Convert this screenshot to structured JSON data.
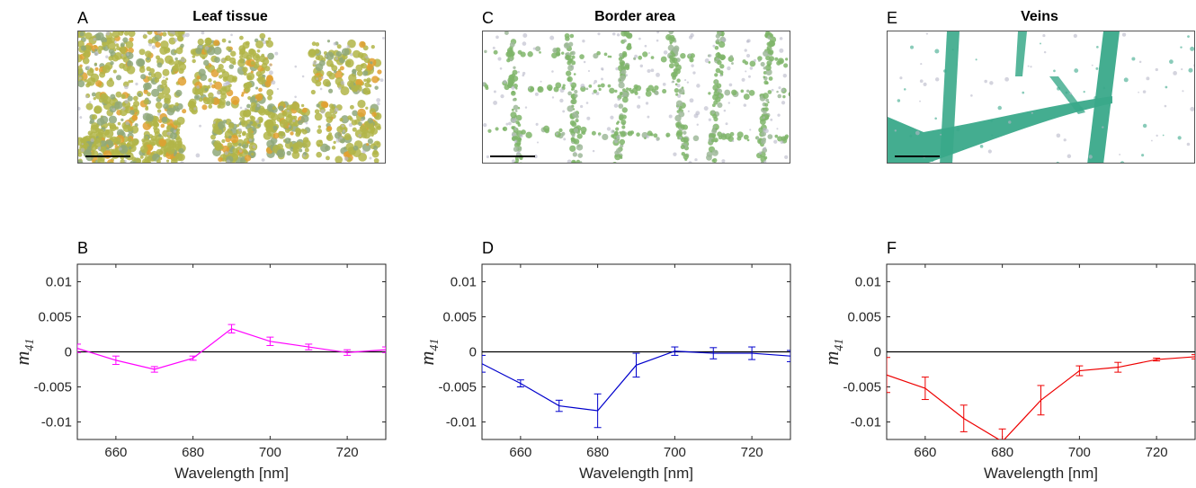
{
  "top_panels": [
    {
      "letter": "A",
      "title": "Leaf tissue",
      "tint": "#b1b548",
      "style": "tissue"
    },
    {
      "letter": "C",
      "title": "Border area",
      "tint": "#7fb56a",
      "style": "border"
    },
    {
      "letter": "E",
      "title": "Veins",
      "tint": "#3aa98a",
      "style": "veins"
    }
  ],
  "bottom_panels": [
    {
      "letter": "B"
    },
    {
      "letter": "D"
    },
    {
      "letter": "F"
    }
  ],
  "chart_data": [
    {
      "type": "line",
      "color": "#ff00ff",
      "x": [
        650,
        660,
        670,
        680,
        690,
        700,
        710,
        720,
        730
      ],
      "values": [
        0.0005,
        -0.0012,
        -0.0025,
        -0.0009,
        0.0033,
        0.0015,
        0.0007,
        -0.0001,
        0.0003
      ],
      "errors": [
        0.0006,
        0.0006,
        0.0004,
        0.0003,
        0.0006,
        0.0006,
        0.0004,
        0.0004,
        0.0004
      ],
      "xlabel": "Wavelength [nm]",
      "ylabel": "m",
      "ylabel_sub": "41",
      "xlim": [
        650,
        730
      ],
      "ylim": [
        -0.0125,
        0.0125
      ],
      "xticks": [
        660,
        680,
        700,
        720
      ],
      "yticks": [
        0.01,
        0.005,
        0,
        -0.005,
        -0.01
      ],
      "ytick_labels": [
        "0.01",
        "0.005",
        "0",
        "-0.005",
        "-0.01"
      ],
      "zero_line": true
    },
    {
      "type": "line",
      "color": "#0000cc",
      "x": [
        650,
        660,
        670,
        680,
        690,
        700,
        710,
        720,
        730
      ],
      "values": [
        -0.0017,
        -0.0045,
        -0.0077,
        -0.0084,
        -0.0019,
        0.0001,
        -0.0002,
        -0.0002,
        -0.0006
      ],
      "errors": [
        0.0012,
        0.0005,
        0.0008,
        0.0024,
        0.0017,
        0.0006,
        0.0008,
        0.0009,
        0.0008
      ],
      "xlabel": "Wavelength [nm]",
      "ylabel": "m",
      "ylabel_sub": "41",
      "xlim": [
        650,
        730
      ],
      "ylim": [
        -0.0125,
        0.0125
      ],
      "xticks": [
        660,
        680,
        700,
        720
      ],
      "yticks": [
        0.01,
        0.005,
        0,
        -0.005,
        -0.01
      ],
      "ytick_labels": [
        "0.01",
        "0.005",
        "0",
        "-0.005",
        "-0.01"
      ],
      "zero_line": true
    },
    {
      "type": "line",
      "color": "#ee0000",
      "x": [
        650,
        660,
        670,
        680,
        690,
        700,
        710,
        720,
        730
      ],
      "values": [
        -0.0033,
        -0.0052,
        -0.0095,
        -0.0128,
        -0.0069,
        -0.0027,
        -0.0022,
        -0.0011,
        -0.0007
      ],
      "errors": [
        0.0025,
        0.0016,
        0.0019,
        0.0018,
        0.0021,
        0.0007,
        0.0007,
        0.0002,
        0.0003
      ],
      "xlabel": "Wavelength [nm]",
      "ylabel": "m",
      "ylabel_sub": "41",
      "xlim": [
        650,
        730
      ],
      "ylim": [
        -0.0125,
        0.0125
      ],
      "xticks": [
        660,
        680,
        700,
        720
      ],
      "yticks": [
        0.01,
        0.005,
        0,
        -0.005,
        -0.01
      ],
      "ytick_labels": [
        "0.01",
        "0.005",
        "0",
        "-0.005",
        "-0.01"
      ],
      "zero_line": true
    }
  ]
}
